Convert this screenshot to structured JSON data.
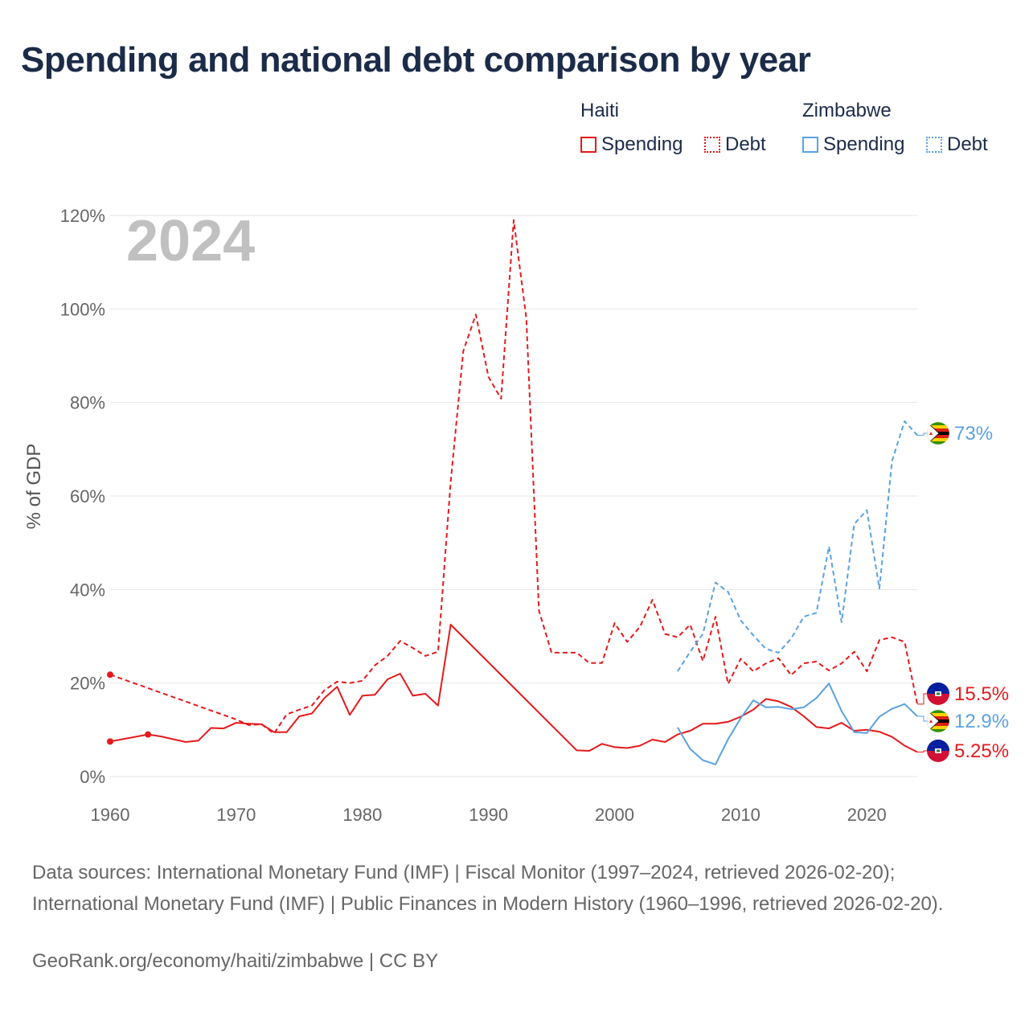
{
  "title": "Spending and national debt comparison by year",
  "legend": {
    "groups": [
      {
        "name": "Haiti",
        "color": "#e41a1c",
        "items": [
          "Spending",
          "Debt"
        ]
      },
      {
        "name": "Zimbabwe",
        "color": "#5aa2e0",
        "items": [
          "Spending",
          "Debt"
        ]
      }
    ]
  },
  "year_watermark": "2024",
  "source_text": "Data sources: International Monetary Fund (IMF) | Fiscal Monitor (1997–2024, retrieved 2026-02-20); International Monetary Fund (IMF) | Public Finances in Modern History (1960–1996, retrieved 2026-02-20).",
  "credit_text": "GeoRank.org/economy/haiti/zimbabwe | CC BY",
  "chart_data": {
    "type": "line",
    "title": "Spending and national debt comparison by year",
    "xlabel": "",
    "ylabel": "% of GDP",
    "xlim": [
      1960,
      2024
    ],
    "ylim": [
      0,
      120
    ],
    "x_ticks": [
      1960,
      1970,
      1980,
      1990,
      2000,
      2010,
      2020
    ],
    "y_ticks": [
      0,
      20,
      40,
      60,
      80,
      100,
      120
    ],
    "y_tick_suffix": "%",
    "grid": true,
    "series": [
      {
        "name": "Haiti Debt",
        "country": "Haiti",
        "metric": "Debt",
        "color": "#e41a1c",
        "dash": "dashed",
        "end_label": "15.5%",
        "flag": "haiti",
        "points": [
          [
            1960,
            21.8
          ],
          [
            1970,
            12.2
          ],
          [
            1971,
            11.0
          ],
          [
            1972,
            11.2
          ],
          [
            1973,
            9.2
          ],
          [
            1974,
            13.3
          ],
          [
            1975,
            14.3
          ],
          [
            1976,
            15.2
          ],
          [
            1977,
            18.5
          ],
          [
            1978,
            20.3
          ],
          [
            1979,
            20.0
          ],
          [
            1980,
            20.5
          ],
          [
            1981,
            23.8
          ],
          [
            1982,
            25.8
          ],
          [
            1983,
            29.0
          ],
          [
            1984,
            27.5
          ],
          [
            1985,
            25.8
          ],
          [
            1986,
            26.7
          ],
          [
            1987,
            63.0
          ],
          [
            1988,
            91.0
          ],
          [
            1989,
            98.8
          ],
          [
            1990,
            85.5
          ],
          [
            1991,
            80.8
          ],
          [
            1992,
            119.0
          ],
          [
            1993,
            98.0
          ],
          [
            1994,
            35.5
          ],
          [
            1995,
            26.5
          ],
          [
            1996,
            26.5
          ],
          [
            1997,
            26.5
          ],
          [
            1998,
            24.3
          ],
          [
            1999,
            24.3
          ],
          [
            2000,
            32.8
          ],
          [
            2001,
            28.8
          ],
          [
            2002,
            32.0
          ],
          [
            2003,
            37.8
          ],
          [
            2004,
            30.5
          ],
          [
            2005,
            29.8
          ],
          [
            2006,
            32.5
          ],
          [
            2007,
            24.7
          ],
          [
            2008,
            34.2
          ],
          [
            2009,
            19.8
          ],
          [
            2010,
            25.2
          ],
          [
            2011,
            22.5
          ],
          [
            2012,
            24.2
          ],
          [
            2013,
            25.3
          ],
          [
            2014,
            21.7
          ],
          [
            2015,
            24.2
          ],
          [
            2016,
            24.6
          ],
          [
            2017,
            22.7
          ],
          [
            2018,
            24.2
          ],
          [
            2019,
            26.7
          ],
          [
            2020,
            22.5
          ],
          [
            2021,
            29.2
          ],
          [
            2022,
            29.8
          ],
          [
            2023,
            28.8
          ],
          [
            2024,
            15.5
          ]
        ]
      },
      {
        "name": "Haiti Spending",
        "country": "Haiti",
        "metric": "Spending",
        "color": "#e41a1c",
        "dash": "solid",
        "end_label": "5.25%",
        "flag": "haiti",
        "points": [
          [
            1960,
            7.5
          ],
          [
            1963,
            9.0
          ],
          [
            1964,
            8.6
          ],
          [
            1965,
            8.0
          ],
          [
            1966,
            7.4
          ],
          [
            1967,
            7.7
          ],
          [
            1968,
            10.4
          ],
          [
            1969,
            10.3
          ],
          [
            1970,
            11.5
          ],
          [
            1971,
            11.3
          ],
          [
            1972,
            11.2
          ],
          [
            1973,
            9.5
          ],
          [
            1974,
            9.5
          ],
          [
            1975,
            12.9
          ],
          [
            1976,
            13.5
          ],
          [
            1977,
            16.8
          ],
          [
            1978,
            19.2
          ],
          [
            1979,
            13.2
          ],
          [
            1980,
            17.3
          ],
          [
            1981,
            17.5
          ],
          [
            1982,
            20.8
          ],
          [
            1983,
            22.0
          ],
          [
            1984,
            17.3
          ],
          [
            1985,
            17.7
          ],
          [
            1986,
            15.2
          ],
          [
            1987,
            32.5
          ],
          [
            1997,
            5.6
          ],
          [
            1998,
            5.5
          ],
          [
            1999,
            7.0
          ],
          [
            2000,
            6.3
          ],
          [
            2001,
            6.1
          ],
          [
            2002,
            6.6
          ],
          [
            2003,
            7.9
          ],
          [
            2004,
            7.4
          ],
          [
            2005,
            9.0
          ],
          [
            2006,
            9.8
          ],
          [
            2007,
            11.3
          ],
          [
            2008,
            11.3
          ],
          [
            2009,
            11.7
          ],
          [
            2010,
            12.8
          ],
          [
            2011,
            14.3
          ],
          [
            2012,
            16.6
          ],
          [
            2013,
            16.1
          ],
          [
            2014,
            14.9
          ],
          [
            2015,
            12.9
          ],
          [
            2016,
            10.6
          ],
          [
            2017,
            10.3
          ],
          [
            2018,
            11.5
          ],
          [
            2019,
            9.8
          ],
          [
            2020,
            10.0
          ],
          [
            2021,
            9.6
          ],
          [
            2022,
            8.5
          ],
          [
            2023,
            6.6
          ],
          [
            2024,
            5.25
          ]
        ]
      },
      {
        "name": "Zimbabwe Debt",
        "country": "Zimbabwe",
        "metric": "Debt",
        "color": "#5aa2e0",
        "dash": "dashed",
        "end_label": "73%",
        "flag": "zimbabwe",
        "points": [
          [
            2005,
            22.5
          ],
          [
            2006,
            26.7
          ],
          [
            2007,
            30.5
          ],
          [
            2008,
            41.5
          ],
          [
            2009,
            39.5
          ],
          [
            2010,
            33.4
          ],
          [
            2011,
            30.2
          ],
          [
            2012,
            27.3
          ],
          [
            2013,
            26.5
          ],
          [
            2014,
            29.5
          ],
          [
            2015,
            34.2
          ],
          [
            2016,
            35.0
          ],
          [
            2017,
            49.2
          ],
          [
            2018,
            33.0
          ],
          [
            2019,
            54.0
          ],
          [
            2020,
            57.0
          ],
          [
            2021,
            40.2
          ],
          [
            2022,
            67.5
          ],
          [
            2023,
            76.0
          ],
          [
            2024,
            73.0
          ]
        ]
      },
      {
        "name": "Zimbabwe Spending",
        "country": "Zimbabwe",
        "metric": "Spending",
        "color": "#5aa2e0",
        "dash": "solid",
        "end_label": "12.9%",
        "flag": "zimbabwe",
        "points": [
          [
            2005,
            10.5
          ],
          [
            2006,
            5.9
          ],
          [
            2007,
            3.5
          ],
          [
            2008,
            2.6
          ],
          [
            2009,
            8.0
          ],
          [
            2010,
            12.5
          ],
          [
            2011,
            16.3
          ],
          [
            2012,
            14.8
          ],
          [
            2013,
            14.9
          ],
          [
            2014,
            14.4
          ],
          [
            2015,
            14.8
          ],
          [
            2016,
            16.8
          ],
          [
            2017,
            19.9
          ],
          [
            2018,
            14.0
          ],
          [
            2019,
            9.5
          ],
          [
            2020,
            9.3
          ],
          [
            2021,
            12.8
          ],
          [
            2022,
            14.5
          ],
          [
            2023,
            15.5
          ],
          [
            2024,
            12.9
          ]
        ]
      }
    ]
  }
}
